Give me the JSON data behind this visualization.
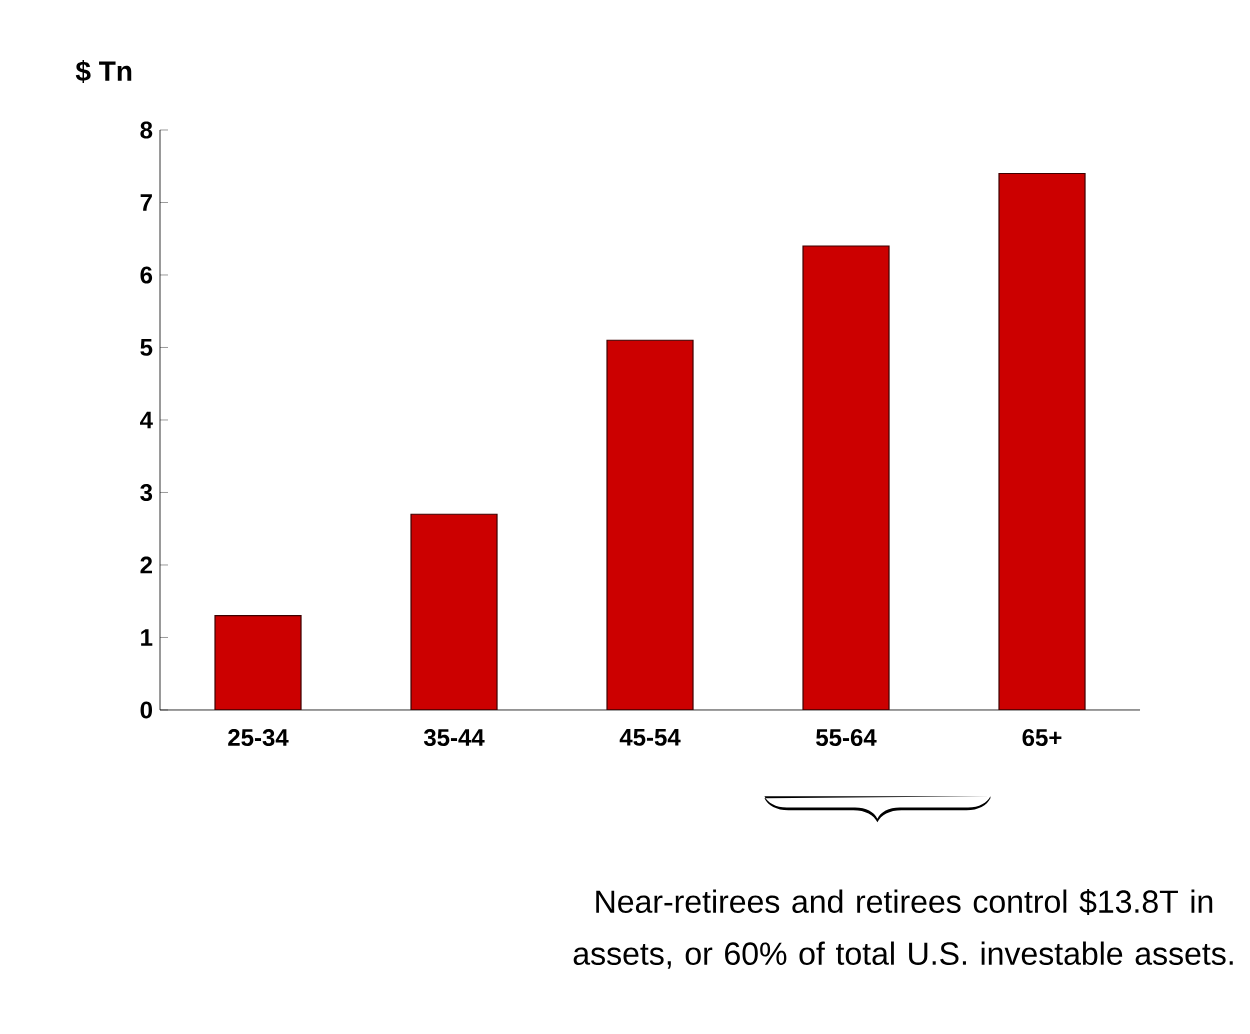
{
  "chart_data": {
    "type": "bar",
    "ylabel": "$ Tn",
    "categories": [
      "25-34",
      "35-44",
      "45-54",
      "55-64",
      "65+"
    ],
    "values": [
      1.3,
      2.7,
      5.1,
      6.4,
      7.4
    ],
    "color": "#cc0000",
    "ylim": [
      0,
      8
    ],
    "yticks": [
      0,
      1,
      2,
      3,
      4,
      5,
      6,
      7,
      8
    ],
    "grid": false,
    "annotations": [
      "Near-retirees and retirees control $13.8T in assets, or 60% of total U.S. investable assets."
    ]
  }
}
